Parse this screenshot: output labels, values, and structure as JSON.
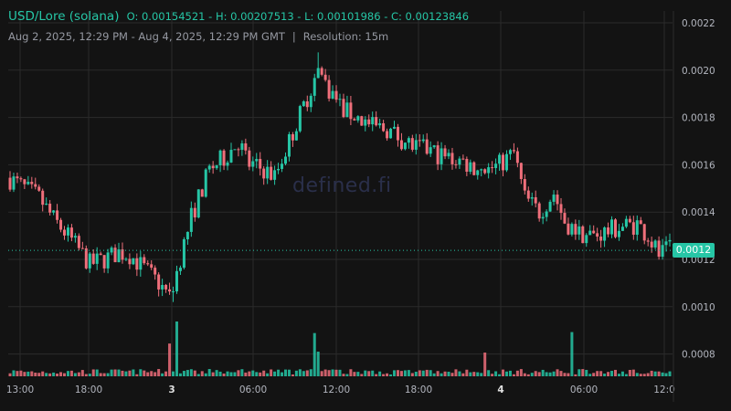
{
  "header": {
    "symbol": "USD/Lore (solana)",
    "ohlc": "O: 0.00154521 - H: 0.00207513 - L: 0.00101986 - C: 0.00123846",
    "range": "Aug 2, 2025, 12:29 PM - Aug 4, 2025, 12:29 PM GMT",
    "separator": "|",
    "resolution": "Resolution: 15m"
  },
  "watermark": "defined.fi",
  "current_price_label": "0.0012",
  "colors": {
    "up": "#26c6a6",
    "down": "#ef6f7b",
    "background": "#131313",
    "grid": "#2b2b2b"
  },
  "chart_data": {
    "type": "candlestick",
    "x_tick_labels": [
      "13:00",
      "18:00",
      "3",
      "06:00",
      "12:00",
      "18:00",
      "4",
      "06:00",
      "12:0"
    ],
    "y_tick_labels": [
      "0.0022",
      "0.0020",
      "0.0018",
      "0.0016",
      "0.0014",
      "0.0012",
      "0.0010",
      "0.0008"
    ],
    "ylim": [
      0.00072,
      0.00225
    ],
    "current_price": 0.001238,
    "open": 0.00154521,
    "high": 0.00207513,
    "low": 0.00101986,
    "close": 0.00123846,
    "approx_close_path": [
      [
        0,
        0.00154
      ],
      [
        8,
        0.00146
      ],
      [
        12,
        0.00137
      ],
      [
        17,
        0.00128
      ],
      [
        22,
        0.00118
      ],
      [
        26,
        0.0012
      ],
      [
        30,
        0.00123
      ],
      [
        33,
        0.00122
      ],
      [
        37,
        0.00116
      ],
      [
        41,
        0.0011
      ],
      [
        44,
        0.00104
      ],
      [
        46,
        0.00115
      ],
      [
        50,
        0.00138
      ],
      [
        55,
        0.00158
      ],
      [
        59,
        0.00163
      ],
      [
        63,
        0.0017
      ],
      [
        66,
        0.0016
      ],
      [
        70,
        0.00158
      ],
      [
        73,
        0.00155
      ],
      [
        77,
        0.0017
      ],
      [
        81,
        0.00185
      ],
      [
        85,
        0.002
      ],
      [
        88,
        0.00192
      ],
      [
        92,
        0.00183
      ],
      [
        96,
        0.0018
      ],
      [
        100,
        0.00176
      ],
      [
        104,
        0.00175
      ],
      [
        108,
        0.00171
      ],
      [
        112,
        0.00167
      ],
      [
        116,
        0.00166
      ],
      [
        120,
        0.00163
      ],
      [
        124,
        0.00162
      ],
      [
        128,
        0.00159
      ],
      [
        132,
        0.00158
      ],
      [
        135,
        0.0016
      ],
      [
        139,
        0.00165
      ],
      [
        142,
        0.00146
      ],
      [
        146,
        0.0014
      ],
      [
        150,
        0.00148
      ],
      [
        153,
        0.00136
      ],
      [
        157,
        0.00131
      ],
      [
        161,
        0.0013
      ],
      [
        165,
        0.00132
      ],
      [
        169,
        0.00134
      ],
      [
        173,
        0.00135
      ],
      [
        176,
        0.0013
      ],
      [
        179,
        0.00122
      ],
      [
        182,
        0.00124
      ]
    ]
  }
}
